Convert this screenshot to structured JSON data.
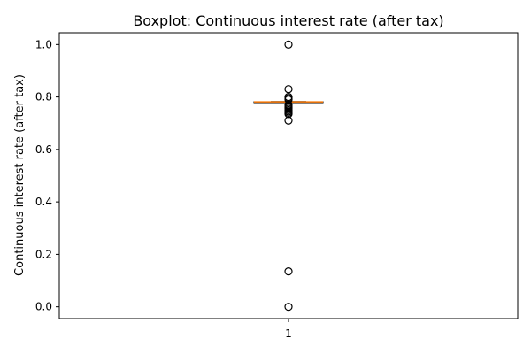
{
  "chart_data": {
    "type": "boxplot",
    "title": "Boxplot:  Continuous interest rate (after tax)",
    "ylabel": "Continuous interest rate (after tax)",
    "xlabel": "",
    "categories": [
      "1"
    ],
    "ylim": [
      -0.045,
      1.045
    ],
    "yticks": [
      0.0,
      0.2,
      0.4,
      0.6,
      0.8,
      1.0
    ],
    "ytick_labels": [
      "0.0",
      "0.2",
      "0.4",
      "0.6",
      "0.8",
      "1.0"
    ],
    "box": {
      "q1": 0.7811,
      "median": 0.7815,
      "q3": 0.7818,
      "whisker_low": 0.7804,
      "whisker_high": 0.7826
    },
    "outliers": [
      1.0,
      0.83,
      0.8,
      0.795,
      0.79,
      0.77,
      0.765,
      0.76,
      0.755,
      0.75,
      0.745,
      0.74,
      0.735,
      0.71,
      0.135,
      0.0
    ],
    "colors": {
      "box": "#000000",
      "median": "#ff7f0e",
      "outlier": "#000000"
    },
    "grid": false
  }
}
